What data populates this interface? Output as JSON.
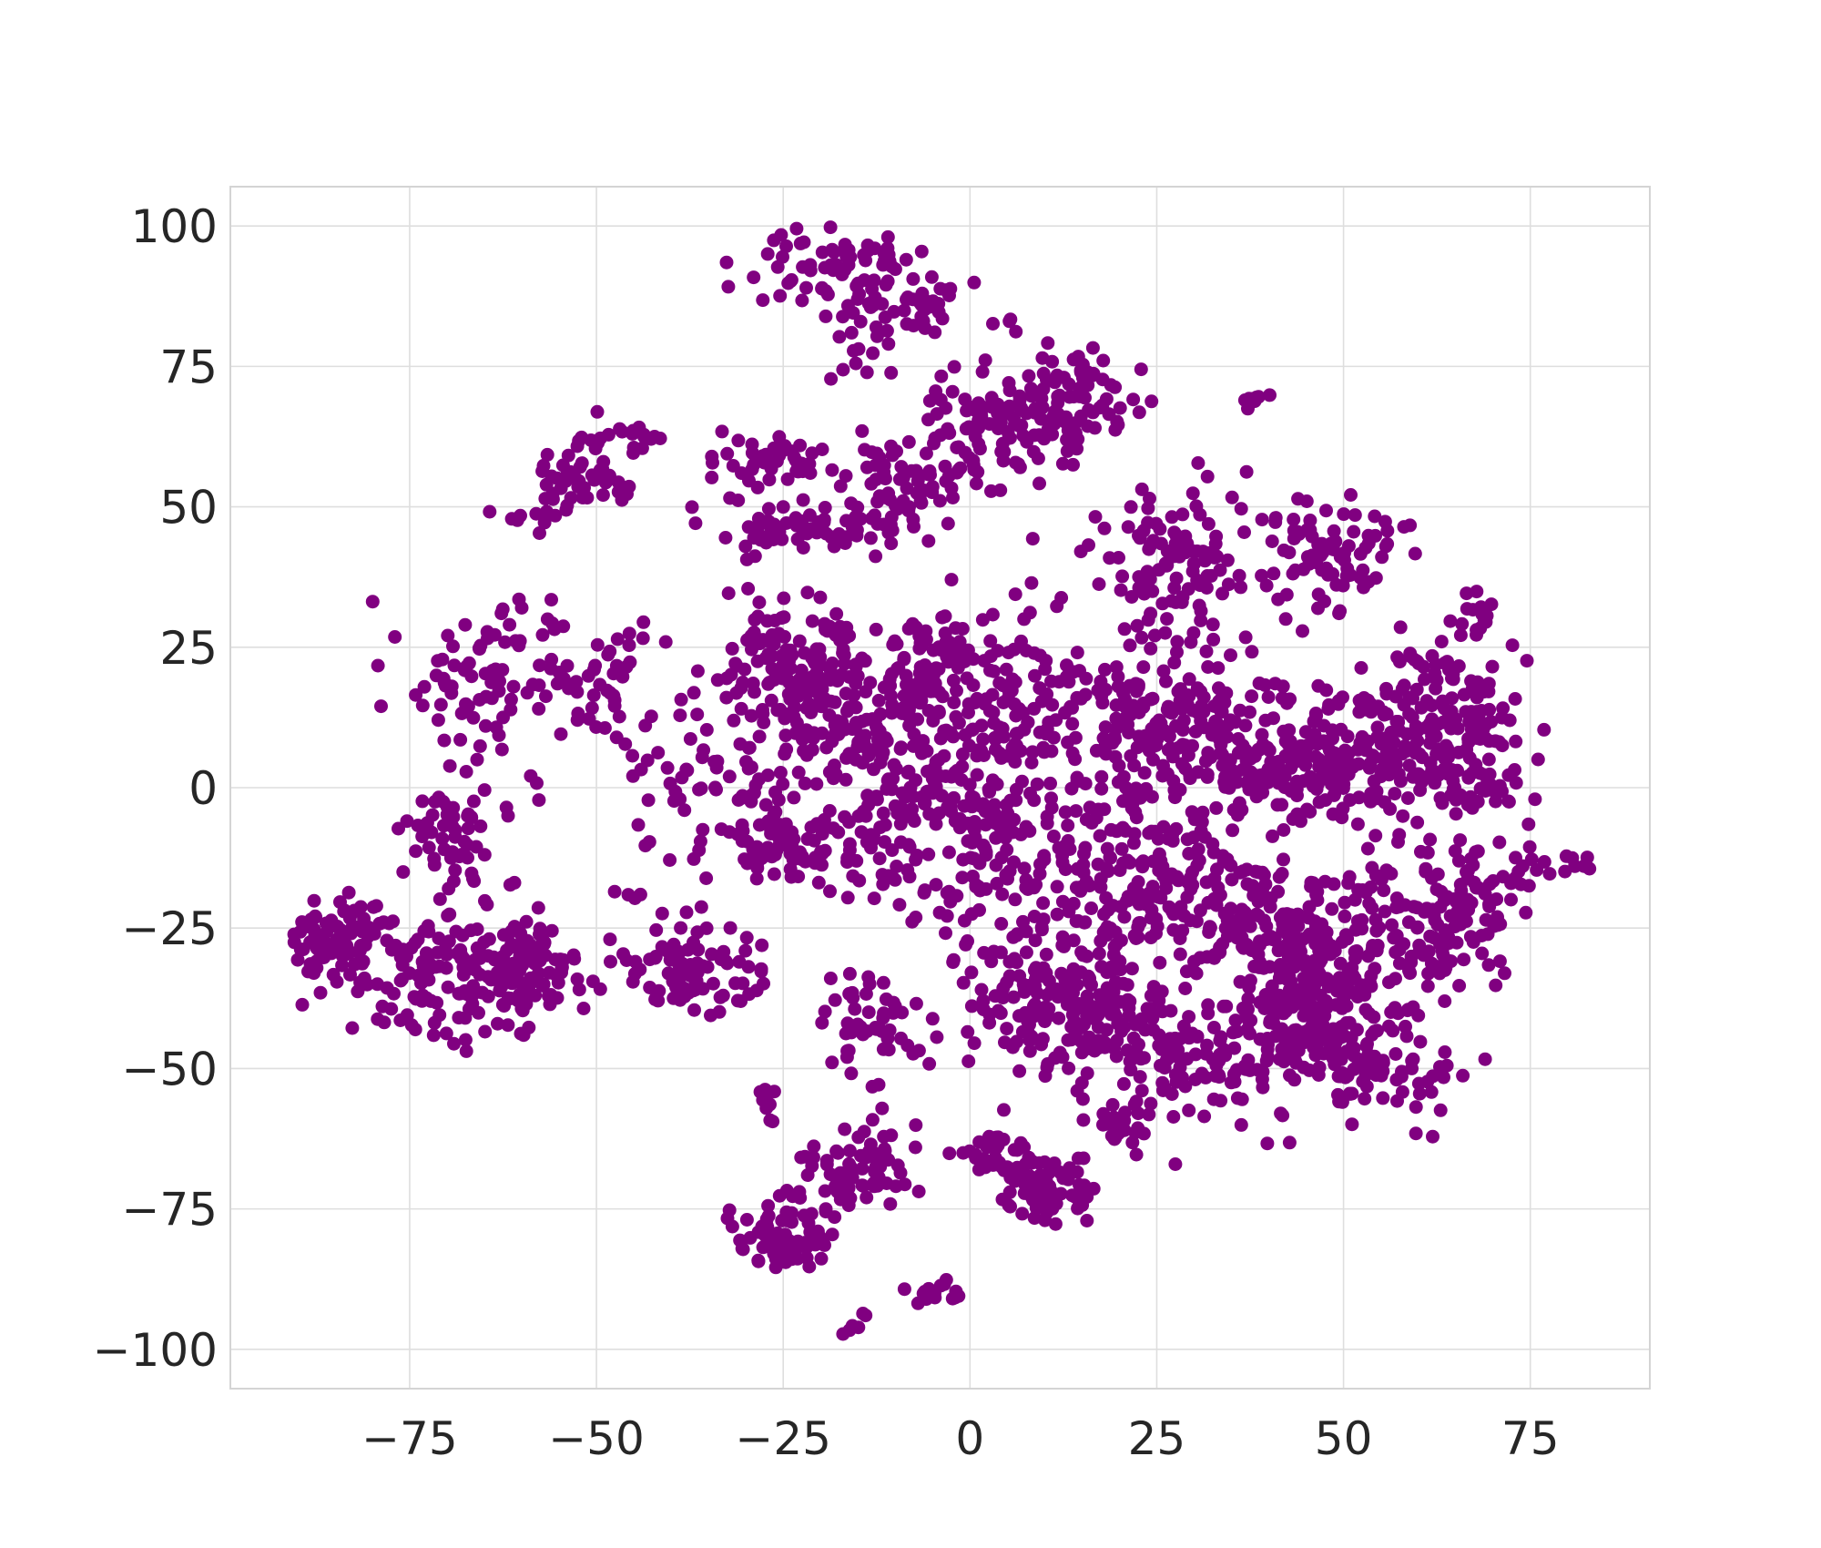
{
  "chart_data": {
    "type": "scatter",
    "title": "",
    "xlabel": "",
    "ylabel": "",
    "xlim": [
      -99,
      91
    ],
    "ylim": [
      -107,
      107
    ],
    "grid": true,
    "legend": "none",
    "marker_color": "#800080",
    "x_ticks": [
      -75,
      -50,
      -25,
      0,
      25,
      50,
      75
    ],
    "x_tick_labels": [
      "−75",
      "−50",
      "−25",
      "0",
      "25",
      "50",
      "75"
    ],
    "y_ticks": [
      100,
      75,
      50,
      25,
      0,
      -25,
      -50,
      -75,
      -100
    ],
    "y_tick_labels": [
      "100",
      "75",
      "50",
      "25",
      "0",
      "−25",
      "−50",
      "−75",
      "−100"
    ],
    "clusters": [
      {
        "cx": -17,
        "cy": 92,
        "sx": 6,
        "sy": 4,
        "n": 75
      },
      {
        "cx": -13,
        "cy": 83,
        "sx": 5,
        "sy": 4,
        "n": 35
      },
      {
        "cx": 4,
        "cy": 64,
        "sx": 5,
        "sy": 5,
        "n": 110
      },
      {
        "cx": 14,
        "cy": 69,
        "sx": 4,
        "sy": 4,
        "n": 65
      },
      {
        "cx": -27,
        "cy": 58,
        "sx": 4,
        "sy": 3,
        "n": 45
      },
      {
        "cx": -10,
        "cy": 53,
        "sx": 4,
        "sy": 5,
        "n": 70
      },
      {
        "cx": -20,
        "cy": 46,
        "sx": 7,
        "sy": 2,
        "n": 45
      },
      {
        "cx": -28,
        "cy": 46,
        "sx": 2,
        "sy": 2,
        "n": 20
      },
      {
        "cx": -53,
        "cy": 55,
        "sx": 4,
        "sy": 3,
        "n": 45
      },
      {
        "cx": -46,
        "cy": 63,
        "sx": 3,
        "sy": 2,
        "n": 18
      },
      {
        "cx": -59,
        "cy": 48,
        "sx": 2,
        "sy": 1,
        "n": 10
      },
      {
        "cx": 38,
        "cy": 69,
        "sx": 1,
        "sy": 1,
        "n": 8
      },
      {
        "cx": 28,
        "cy": 41,
        "sx": 5,
        "sy": 6,
        "n": 95
      },
      {
        "cx": 47,
        "cy": 42,
        "sx": 6,
        "sy": 5,
        "n": 85
      },
      {
        "cx": -23,
        "cy": 21,
        "sx": 5,
        "sy": 6,
        "n": 140
      },
      {
        "cx": -14,
        "cy": 8,
        "sx": 7,
        "sy": 7,
        "n": 150
      },
      {
        "cx": -4,
        "cy": 22,
        "sx": 5,
        "sy": 6,
        "n": 85
      },
      {
        "cx": 10,
        "cy": 15,
        "sx": 7,
        "sy": 7,
        "n": 115
      },
      {
        "cx": 0,
        "cy": 0,
        "sx": 6,
        "sy": 6,
        "n": 95
      },
      {
        "cx": 25,
        "cy": 10,
        "sx": 7,
        "sy": 9,
        "n": 150
      },
      {
        "cx": 40,
        "cy": 5,
        "sx": 6,
        "sy": 7,
        "n": 140
      },
      {
        "cx": 53,
        "cy": 5,
        "sx": 5,
        "sy": 7,
        "n": 110
      },
      {
        "cx": 63,
        "cy": 14,
        "sx": 5,
        "sy": 6,
        "n": 110
      },
      {
        "cx": 68,
        "cy": 3,
        "sx": 4,
        "sy": 5,
        "n": 70
      },
      {
        "cx": 68,
        "cy": 31,
        "sx": 1,
        "sy": 2,
        "n": 14
      },
      {
        "cx": -66,
        "cy": 20,
        "sx": 6,
        "sy": 8,
        "n": 75
      },
      {
        "cx": -50,
        "cy": 16,
        "sx": 6,
        "sy": 7,
        "n": 60
      },
      {
        "cx": -70,
        "cy": -8,
        "sx": 4,
        "sy": 6,
        "n": 55
      },
      {
        "cx": -84,
        "cy": -28,
        "sx": 4,
        "sy": 4,
        "n": 90
      },
      {
        "cx": -68,
        "cy": -33,
        "sx": 7,
        "sy": 5,
        "n": 150
      },
      {
        "cx": -59,
        "cy": -33,
        "sx": 4,
        "sy": 5,
        "n": 65
      },
      {
        "cx": -37,
        "cy": -33,
        "sx": 4,
        "sy": 4,
        "n": 95
      },
      {
        "cx": -25,
        "cy": -10,
        "sx": 3,
        "sy": 3,
        "n": 55
      },
      {
        "cx": -35,
        "cy": 0,
        "sx": 5,
        "sy": 7,
        "n": 50
      },
      {
        "cx": -13,
        "cy": -10,
        "sx": 5,
        "sy": 5,
        "n": 55
      },
      {
        "cx": 10,
        "cy": -15,
        "sx": 9,
        "sy": 8,
        "n": 150
      },
      {
        "cx": 25,
        "cy": -18,
        "sx": 7,
        "sy": 7,
        "n": 120
      },
      {
        "cx": 12,
        "cy": -38,
        "sx": 6,
        "sy": 6,
        "n": 150
      },
      {
        "cx": 22,
        "cy": -45,
        "sx": 6,
        "sy": 5,
        "n": 80
      },
      {
        "cx": 38,
        "cy": -25,
        "sx": 5,
        "sy": 5,
        "n": 100
      },
      {
        "cx": 45,
        "cy": -40,
        "sx": 5,
        "sy": 6,
        "n": 170
      },
      {
        "cx": 52,
        "cy": -30,
        "sx": 6,
        "sy": 8,
        "n": 150
      },
      {
        "cx": 65,
        "cy": -22,
        "sx": 5,
        "sy": 6,
        "n": 100
      },
      {
        "cx": 55,
        "cy": -52,
        "sx": 6,
        "sy": 4,
        "n": 65
      },
      {
        "cx": 33,
        "cy": -50,
        "sx": 6,
        "sy": 5,
        "n": 70
      },
      {
        "cx": -14,
        "cy": -40,
        "sx": 4,
        "sy": 4,
        "n": 40
      },
      {
        "cx": -15,
        "cy": -68,
        "sx": 4,
        "sy": 3,
        "n": 65
      },
      {
        "cx": -25,
        "cy": -80,
        "sx": 3,
        "sy": 3,
        "n": 85
      },
      {
        "cx": 10,
        "cy": -72,
        "sx": 3,
        "sy": 3,
        "n": 75
      },
      {
        "cx": 3,
        "cy": -65,
        "sx": 3,
        "sy": 2,
        "n": 28
      },
      {
        "cx": 20,
        "cy": -60,
        "sx": 2,
        "sy": 2,
        "n": 24
      },
      {
        "cx": -4,
        "cy": -90,
        "sx": 2,
        "sy": 1,
        "n": 16
      },
      {
        "cx": -15,
        "cy": -95,
        "sx": 1,
        "sy": 1,
        "n": 6
      },
      {
        "cx": -27,
        "cy": -56,
        "sx": 1,
        "sy": 2,
        "n": 10
      },
      {
        "cx": 78,
        "cy": -13,
        "sx": 3,
        "sy": 3,
        "n": 14
      },
      {
        "cx": 5,
        "cy": 83,
        "sx": 1,
        "sy": 1,
        "n": 4
      },
      {
        "cx": -5,
        "cy": 87,
        "sx": 2,
        "sy": 2,
        "n": 14
      },
      {
        "cx": -45,
        "cy": -18,
        "sx": 2,
        "sy": 1,
        "n": 4
      },
      {
        "cx": -10,
        "cy": -55,
        "sx": 7,
        "sy": 8,
        "n": 22
      }
    ]
  }
}
